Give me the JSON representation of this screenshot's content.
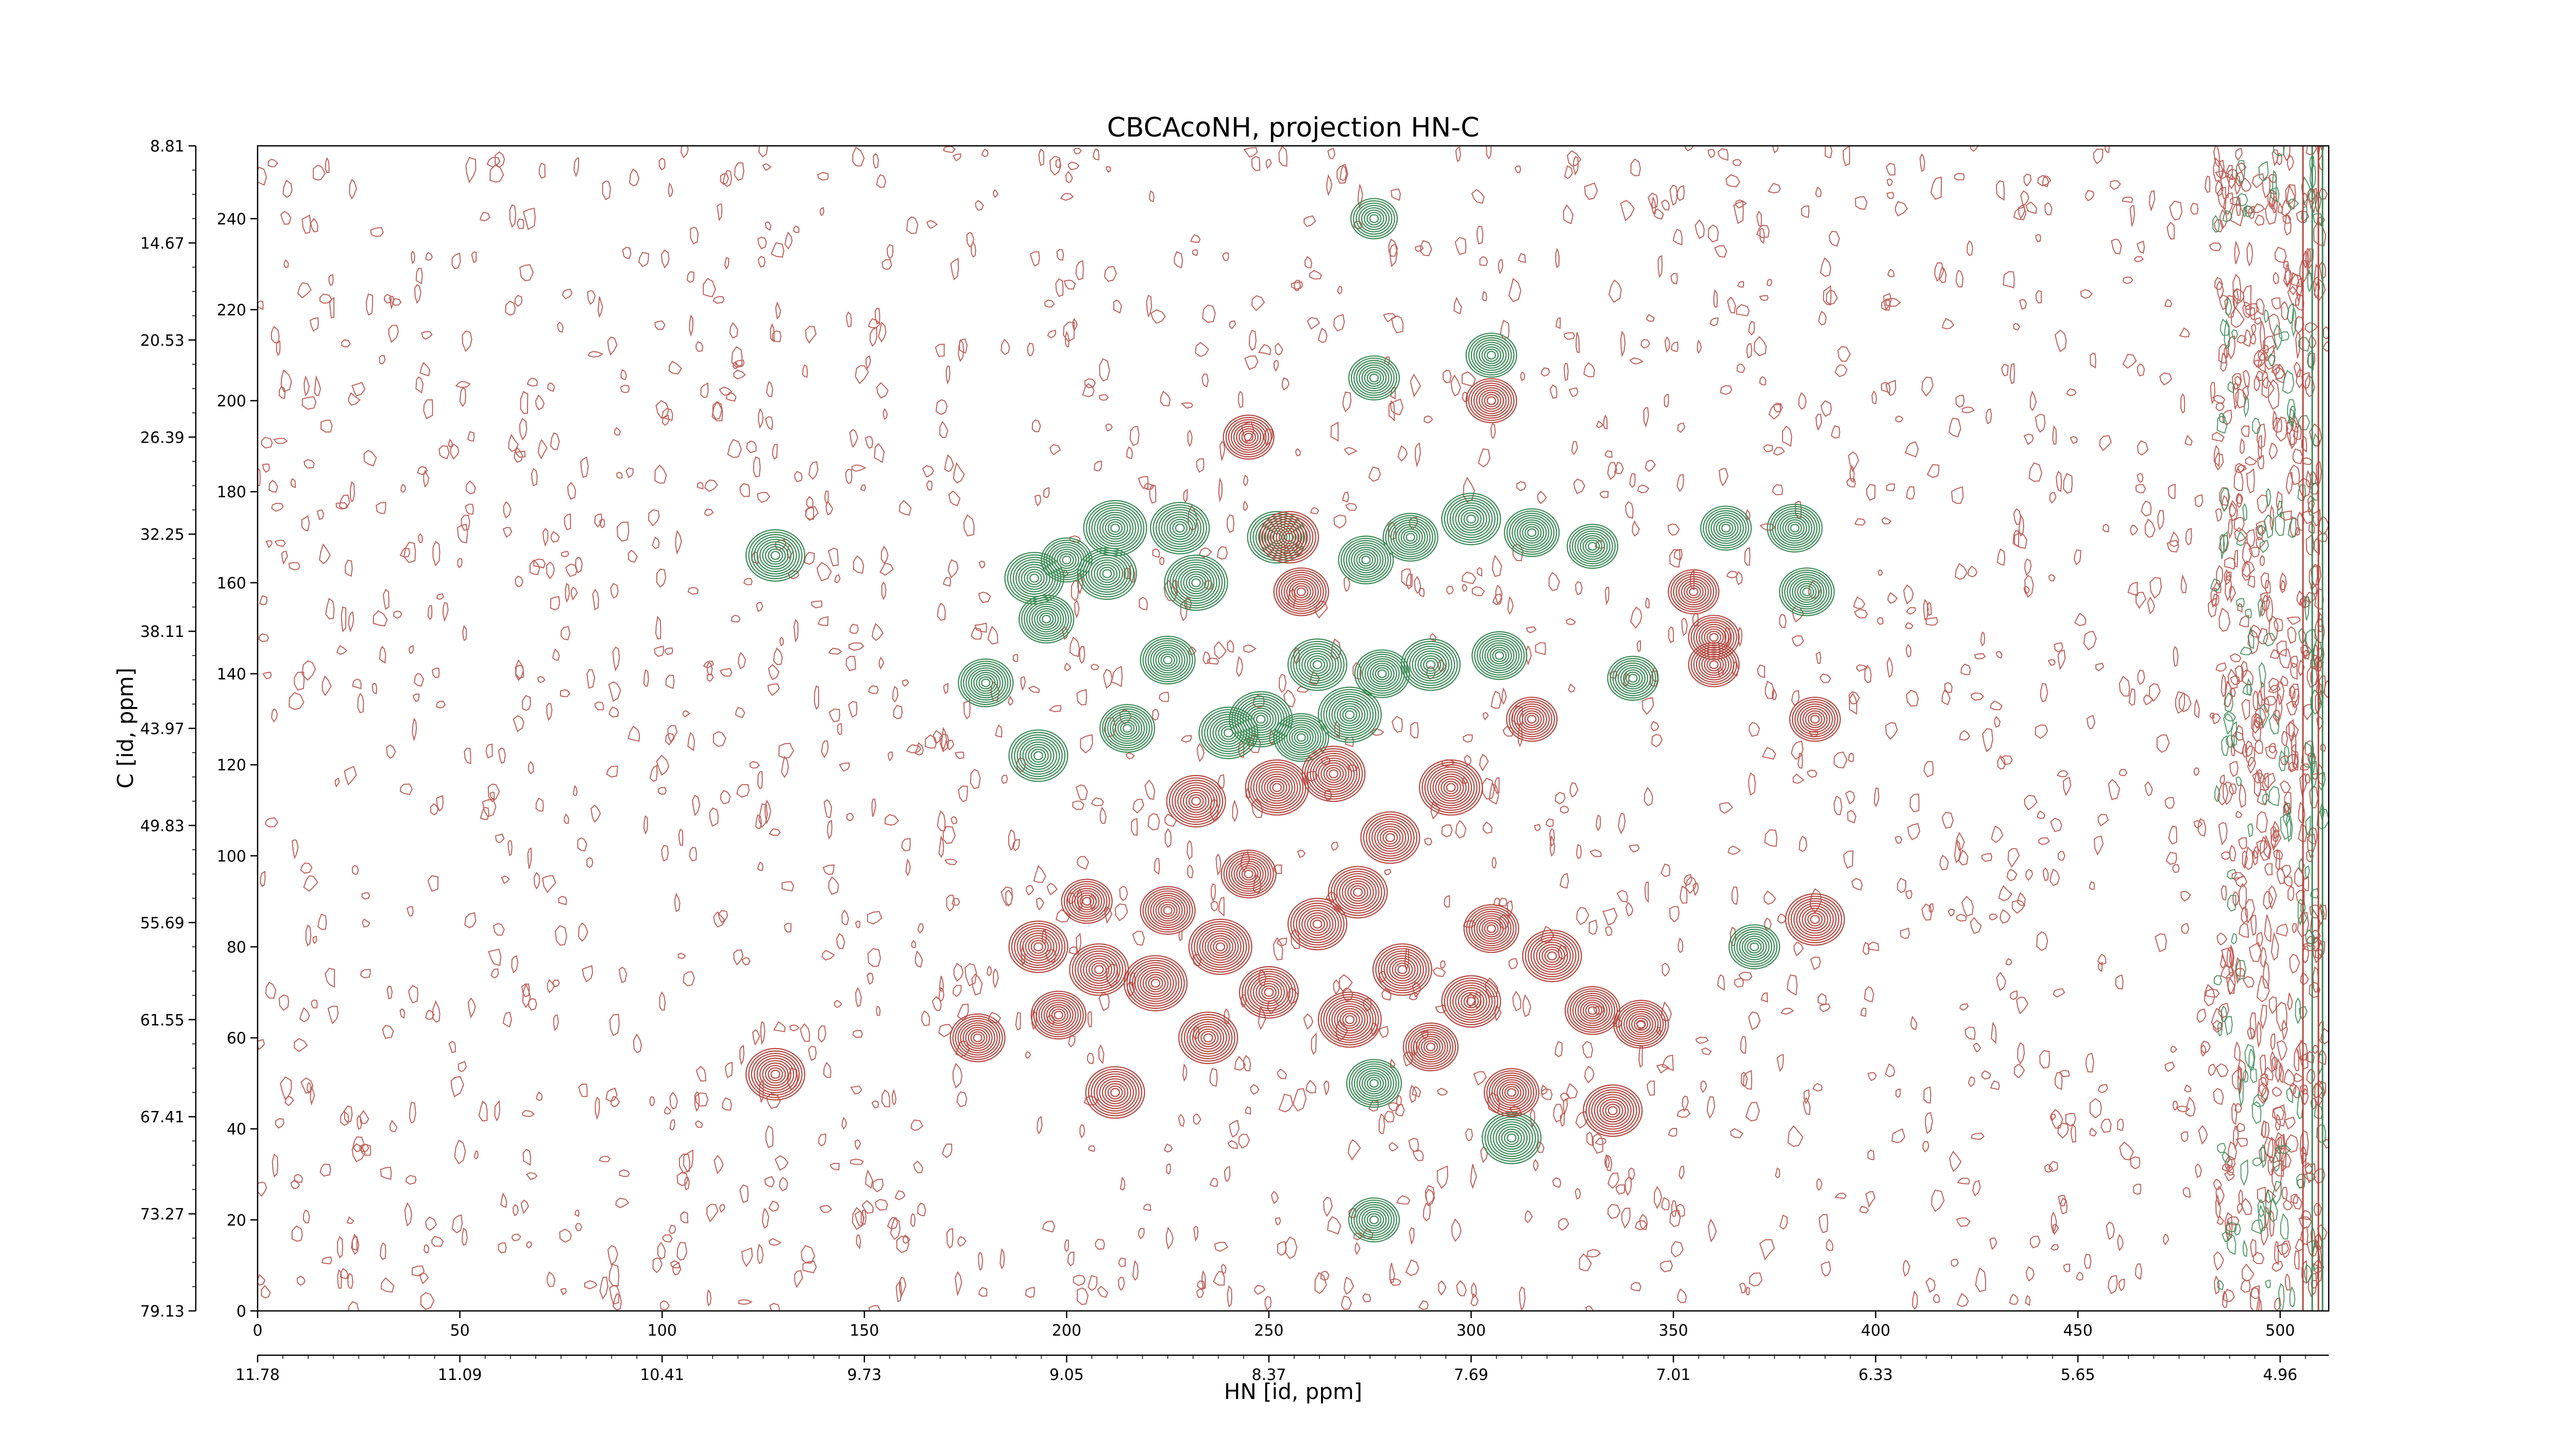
{
  "chart_data": {
    "type": "contour",
    "title": "CBCAcoNH, projection HN-C",
    "xlabel": "HN [id, ppm]",
    "ylabel": "C [id, ppm]",
    "xlim": [
      0,
      512
    ],
    "ylim": [
      0,
      256
    ],
    "grid": false,
    "x_index_ticks": [
      "0",
      "50",
      "100",
      "150",
      "200",
      "250",
      "300",
      "350",
      "400",
      "450",
      "500"
    ],
    "x_index_tick_values": [
      0,
      50,
      100,
      150,
      200,
      250,
      300,
      350,
      400,
      450,
      500
    ],
    "x_ppm_ticks": [
      "11.78",
      "11.09",
      "10.41",
      "9.73",
      "9.05",
      "8.37",
      "7.69",
      "7.01",
      "6.33",
      "5.65",
      "4.96"
    ],
    "x_ppm_tick_values": [
      0,
      50,
      100,
      150,
      200,
      250,
      300,
      350,
      400,
      450,
      500
    ],
    "y_index_ticks": [
      "0",
      "20",
      "40",
      "60",
      "80",
      "100",
      "120",
      "140",
      "160",
      "180",
      "200",
      "220",
      "240"
    ],
    "y_index_tick_values": [
      0,
      20,
      40,
      60,
      80,
      100,
      120,
      140,
      160,
      180,
      200,
      220,
      240
    ],
    "y_ppm_ticks": [
      "79.13",
      "73.27",
      "67.41",
      "61.55",
      "55.69",
      "49.83",
      "43.97",
      "38.11",
      "32.25",
      "26.39",
      "20.53",
      "14.67",
      "8.81"
    ],
    "y_ppm_tick_values": [
      0,
      21.333,
      42.667,
      64,
      85.333,
      106.667,
      128,
      149.333,
      170.667,
      192,
      213.333,
      234.667,
      256
    ],
    "colors": {
      "positive": "#3a8a55",
      "negative": "#b5473f"
    },
    "series": [
      {
        "sign": "positive",
        "color": "#3a8a55",
        "peaks": [
          {
            "x": 128,
            "y": 166,
            "intensity": 0.8
          },
          {
            "x": 180,
            "y": 138,
            "intensity": 0.7
          },
          {
            "x": 192,
            "y": 161,
            "intensity": 0.8
          },
          {
            "x": 193,
            "y": 122,
            "intensity": 0.8
          },
          {
            "x": 195,
            "y": 152,
            "intensity": 0.7
          },
          {
            "x": 200,
            "y": 165,
            "intensity": 0.6
          },
          {
            "x": 210,
            "y": 162,
            "intensity": 0.8
          },
          {
            "x": 212,
            "y": 172,
            "intensity": 0.9
          },
          {
            "x": 215,
            "y": 128,
            "intensity": 0.7
          },
          {
            "x": 225,
            "y": 143,
            "intensity": 0.7
          },
          {
            "x": 228,
            "y": 172,
            "intensity": 0.8
          },
          {
            "x": 232,
            "y": 160,
            "intensity": 0.9
          },
          {
            "x": 240,
            "y": 127,
            "intensity": 0.8
          },
          {
            "x": 248,
            "y": 130,
            "intensity": 0.9
          },
          {
            "x": 252,
            "y": 170,
            "intensity": 0.8
          },
          {
            "x": 258,
            "y": 126,
            "intensity": 0.7
          },
          {
            "x": 262,
            "y": 142,
            "intensity": 0.8
          },
          {
            "x": 270,
            "y": 131,
            "intensity": 0.9
          },
          {
            "x": 274,
            "y": 165,
            "intensity": 0.7
          },
          {
            "x": 276,
            "y": 205,
            "intensity": 0.6
          },
          {
            "x": 276,
            "y": 240,
            "intensity": 0.5
          },
          {
            "x": 276,
            "y": 20,
            "intensity": 0.6
          },
          {
            "x": 276,
            "y": 50,
            "intensity": 0.7
          },
          {
            "x": 278,
            "y": 140,
            "intensity": 0.7
          },
          {
            "x": 285,
            "y": 170,
            "intensity": 0.7
          },
          {
            "x": 290,
            "y": 142,
            "intensity": 0.8
          },
          {
            "x": 300,
            "y": 174,
            "intensity": 0.8
          },
          {
            "x": 305,
            "y": 210,
            "intensity": 0.6
          },
          {
            "x": 307,
            "y": 144,
            "intensity": 0.7
          },
          {
            "x": 310,
            "y": 38,
            "intensity": 0.8
          },
          {
            "x": 315,
            "y": 171,
            "intensity": 0.7
          },
          {
            "x": 330,
            "y": 168,
            "intensity": 0.6
          },
          {
            "x": 340,
            "y": 139,
            "intensity": 0.6
          },
          {
            "x": 363,
            "y": 172,
            "intensity": 0.6
          },
          {
            "x": 370,
            "y": 80,
            "intensity": 0.6
          },
          {
            "x": 380,
            "y": 172,
            "intensity": 0.7
          },
          {
            "x": 383,
            "y": 158,
            "intensity": 0.7
          }
        ]
      },
      {
        "sign": "negative",
        "color": "#b5473f",
        "peaks": [
          {
            "x": 128,
            "y": 52,
            "intensity": 0.8
          },
          {
            "x": 178,
            "y": 60,
            "intensity": 0.7
          },
          {
            "x": 193,
            "y": 80,
            "intensity": 0.8
          },
          {
            "x": 198,
            "y": 65,
            "intensity": 0.7
          },
          {
            "x": 205,
            "y": 90,
            "intensity": 0.6
          },
          {
            "x": 208,
            "y": 75,
            "intensity": 0.8
          },
          {
            "x": 212,
            "y": 48,
            "intensity": 0.8
          },
          {
            "x": 222,
            "y": 72,
            "intensity": 0.9
          },
          {
            "x": 225,
            "y": 88,
            "intensity": 0.7
          },
          {
            "x": 232,
            "y": 112,
            "intensity": 0.8
          },
          {
            "x": 235,
            "y": 60,
            "intensity": 0.8
          },
          {
            "x": 238,
            "y": 80,
            "intensity": 0.9
          },
          {
            "x": 245,
            "y": 96,
            "intensity": 0.7
          },
          {
            "x": 250,
            "y": 70,
            "intensity": 0.8
          },
          {
            "x": 252,
            "y": 115,
            "intensity": 0.9
          },
          {
            "x": 255,
            "y": 170,
            "intensity": 0.8
          },
          {
            "x": 258,
            "y": 158,
            "intensity": 0.7
          },
          {
            "x": 262,
            "y": 85,
            "intensity": 0.8
          },
          {
            "x": 266,
            "y": 118,
            "intensity": 0.9
          },
          {
            "x": 270,
            "y": 64,
            "intensity": 0.9
          },
          {
            "x": 272,
            "y": 92,
            "intensity": 0.8
          },
          {
            "x": 280,
            "y": 104,
            "intensity": 0.8
          },
          {
            "x": 283,
            "y": 75,
            "intensity": 0.8
          },
          {
            "x": 290,
            "y": 58,
            "intensity": 0.7
          },
          {
            "x": 295,
            "y": 115,
            "intensity": 0.9
          },
          {
            "x": 300,
            "y": 68,
            "intensity": 0.8
          },
          {
            "x": 305,
            "y": 84,
            "intensity": 0.7
          },
          {
            "x": 310,
            "y": 48,
            "intensity": 0.7
          },
          {
            "x": 315,
            "y": 130,
            "intensity": 0.6
          },
          {
            "x": 320,
            "y": 78,
            "intensity": 0.8
          },
          {
            "x": 330,
            "y": 66,
            "intensity": 0.7
          },
          {
            "x": 335,
            "y": 44,
            "intensity": 0.8
          },
          {
            "x": 342,
            "y": 63,
            "intensity": 0.7
          },
          {
            "x": 355,
            "y": 158,
            "intensity": 0.6
          },
          {
            "x": 360,
            "y": 142,
            "intensity": 0.6
          },
          {
            "x": 385,
            "y": 86,
            "intensity": 0.8
          },
          {
            "x": 385,
            "y": 130,
            "intensity": 0.6
          },
          {
            "x": 245,
            "y": 192,
            "intensity": 0.6
          },
          {
            "x": 305,
            "y": 200,
            "intensity": 0.6
          },
          {
            "x": 360,
            "y": 148,
            "intensity": 0.6
          }
        ]
      }
    ]
  }
}
